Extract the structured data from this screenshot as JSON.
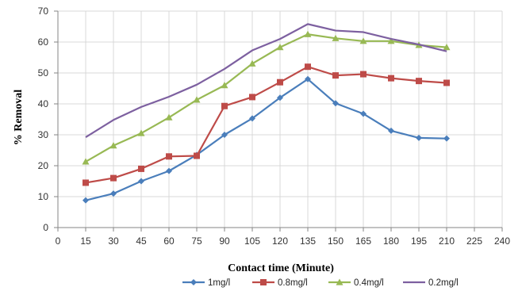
{
  "chart_data": {
    "type": "line",
    "xlabel": "Contact time (Minute)",
    "ylabel": "% Removal",
    "xlim": [
      0,
      240
    ],
    "ylim": [
      0,
      70
    ],
    "xticks": [
      0,
      15,
      30,
      45,
      60,
      75,
      90,
      105,
      120,
      135,
      150,
      165,
      180,
      195,
      210,
      225,
      240
    ],
    "yticks": [
      0,
      10,
      20,
      30,
      40,
      50,
      60,
      70
    ],
    "grid": true,
    "legend_position": "bottom",
    "x": [
      15,
      30,
      45,
      60,
      75,
      90,
      105,
      120,
      135,
      150,
      165,
      180,
      195,
      210
    ],
    "series": [
      {
        "name": "1mg/l",
        "color": "#4a7ebb",
        "marker": "diamond",
        "values": [
          8.8,
          11.0,
          15.0,
          18.3,
          23.5,
          30.0,
          35.3,
          42.0,
          48.0,
          40.2,
          36.8,
          31.3,
          29.0,
          28.8
        ]
      },
      {
        "name": "0.8mg/l",
        "color": "#be4b48",
        "marker": "square",
        "values": [
          14.5,
          16.0,
          19.0,
          23.0,
          23.2,
          39.3,
          42.2,
          47.0,
          52.0,
          49.2,
          49.6,
          48.3,
          47.4,
          46.8
        ]
      },
      {
        "name": "0.4mg/l",
        "color": "#98b954",
        "marker": "triangle",
        "values": [
          21.3,
          26.5,
          30.5,
          35.6,
          41.3,
          46.0,
          53.0,
          58.3,
          62.5,
          61.2,
          60.3,
          60.3,
          59.0,
          58.3
        ]
      },
      {
        "name": "0.2mg/l",
        "color": "#7d60a0",
        "marker": "none",
        "values": [
          29.2,
          34.8,
          39.0,
          42.3,
          46.2,
          51.3,
          57.3,
          61.0,
          65.8,
          63.7,
          63.2,
          61.0,
          59.2,
          57.0
        ]
      }
    ]
  }
}
